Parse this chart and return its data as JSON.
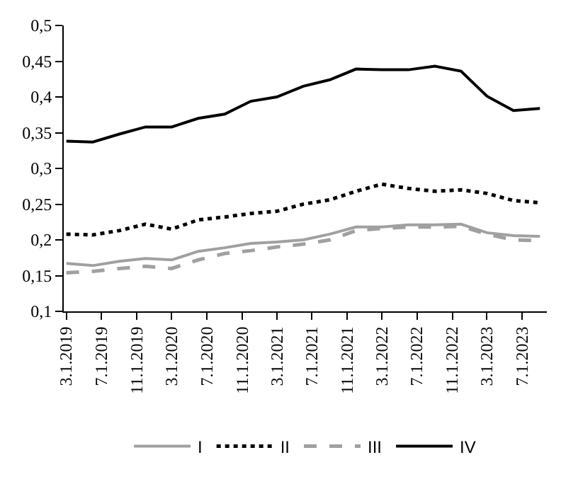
{
  "chart_data": {
    "type": "line",
    "x": [
      "2019-03",
      "2019-06",
      "2019-09",
      "2019-12",
      "2020-03",
      "2020-06",
      "2020-09",
      "2020-12",
      "2021-03",
      "2021-06",
      "2021-09",
      "2021-12",
      "2022-03",
      "2022-06",
      "2022-09",
      "2022-12",
      "2023-03",
      "2023-06",
      "2023-09"
    ],
    "series": [
      {
        "name": "I",
        "color": "#a0a0a0",
        "line_style": "solid",
        "values": [
          0.167,
          0.164,
          0.17,
          0.174,
          0.172,
          0.184,
          0.189,
          0.195,
          0.197,
          0.2,
          0.208,
          0.218,
          0.218,
          0.221,
          0.221,
          0.222,
          0.21,
          0.206,
          0.205
        ]
      },
      {
        "name": "II",
        "color": "#000000",
        "line_style": "dotted",
        "values": [
          0.208,
          0.207,
          0.213,
          0.222,
          0.215,
          0.228,
          0.232,
          0.237,
          0.24,
          0.25,
          0.256,
          0.268,
          0.278,
          0.272,
          0.268,
          0.27,
          0.265,
          0.255,
          0.252
        ]
      },
      {
        "name": "III",
        "color": "#a0a0a0",
        "line_style": "dashed",
        "values": [
          0.154,
          0.156,
          0.16,
          0.163,
          0.16,
          0.172,
          0.181,
          0.185,
          0.19,
          0.194,
          0.2,
          0.213,
          0.216,
          0.218,
          0.218,
          0.219,
          0.208,
          0.2,
          0.199
        ]
      },
      {
        "name": "IV",
        "color": "#000000",
        "line_style": "solid",
        "values": [
          0.338,
          0.337,
          0.348,
          0.358,
          0.358,
          0.37,
          0.376,
          0.394,
          0.4,
          0.415,
          0.424,
          0.439,
          0.438,
          0.438,
          0.443,
          0.436,
          0.401,
          0.381,
          0.384
        ]
      }
    ],
    "xlim": [
      "2019-02-20",
      "2023-09-25"
    ],
    "xticks": [
      {
        "value": "2019-03-01",
        "label": "3.1.2019"
      },
      {
        "value": "2019-07-01",
        "label": "7.1.2019"
      },
      {
        "value": "2019-11-01",
        "label": "11.1.2019"
      },
      {
        "value": "2020-03-01",
        "label": "3.1.2020"
      },
      {
        "value": "2020-07-01",
        "label": "7.1.2020"
      },
      {
        "value": "2020-11-01",
        "label": "11.1.2020"
      },
      {
        "value": "2021-03-01",
        "label": "3.1.2021"
      },
      {
        "value": "2021-07-01",
        "label": "7.1.2021"
      },
      {
        "value": "2021-11-01",
        "label": "11.1.2021"
      },
      {
        "value": "2022-03-01",
        "label": "3.1.2022"
      },
      {
        "value": "2022-07-01",
        "label": "7.1.2022"
      },
      {
        "value": "2022-11-01",
        "label": "11.1.2022"
      },
      {
        "value": "2023-03-01",
        "label": "3.1.2023"
      },
      {
        "value": "2023-07-01",
        "label": "7.1.2023"
      }
    ],
    "ylim": [
      0.1,
      0.5
    ],
    "yticks": [
      {
        "value": 0.1,
        "label": "0,1"
      },
      {
        "value": 0.15,
        "label": "0,15"
      },
      {
        "value": 0.2,
        "label": "0,2"
      },
      {
        "value": 0.25,
        "label": "0,25"
      },
      {
        "value": 0.3,
        "label": "0,3"
      },
      {
        "value": 0.35,
        "label": "0,35"
      },
      {
        "value": 0.4,
        "label": "0,4"
      },
      {
        "value": 0.45,
        "label": "0,45"
      },
      {
        "value": 0.5,
        "label": "0,5"
      }
    ],
    "legend": "bottom",
    "marker": "none"
  }
}
